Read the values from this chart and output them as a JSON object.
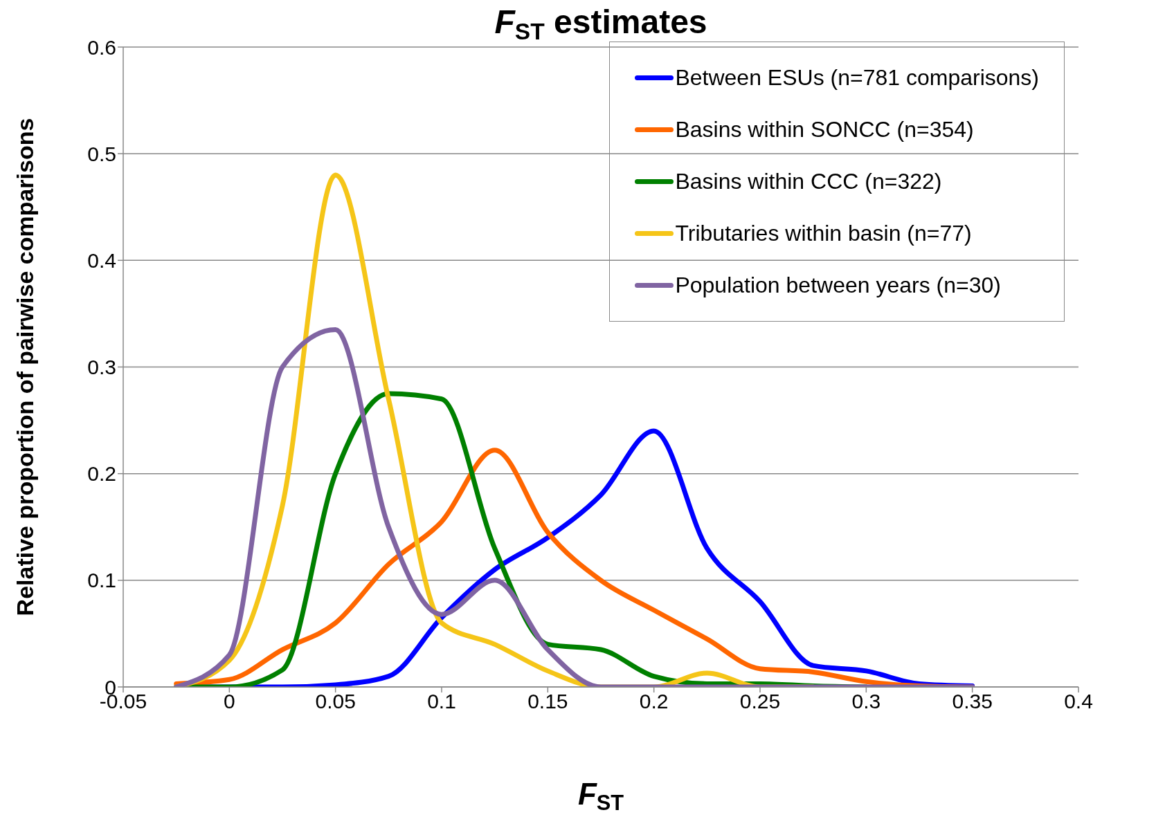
{
  "chart_data": {
    "type": "line",
    "title": "F$_{ST}$ estimates",
    "xlabel": "F$_{ST}$",
    "ylabel": "Relative proportion of pairwise comparisons",
    "x": [
      -0.025,
      0,
      0.025,
      0.05,
      0.075,
      0.1,
      0.125,
      0.15,
      0.175,
      0.2,
      0.225,
      0.25,
      0.275,
      0.3,
      0.325,
      0.35
    ],
    "series": [
      {
        "name": "Between ESUs (n=781 comparisons)",
        "color": "#0000ff",
        "values": [
          0,
          0,
          0,
          0.002,
          0.01,
          0.065,
          0.11,
          0.14,
          0.18,
          0.24,
          0.13,
          0.08,
          0.02,
          0.015,
          0.003,
          0.001
        ]
      },
      {
        "name": "Basins within SONCC (n=354)",
        "color": "#ff6600",
        "values": [
          0.003,
          0.007,
          0.035,
          0.06,
          0.115,
          0.155,
          0.222,
          0.145,
          0.1,
          0.072,
          0.045,
          0.017,
          0.014,
          0.005,
          0.001,
          0
        ]
      },
      {
        "name": "Basins within CCC (n=322)",
        "color": "#008000",
        "values": [
          0,
          0,
          0.016,
          0.2,
          0.275,
          0.27,
          0.13,
          0.04,
          0.035,
          0.01,
          0.003,
          0.003,
          0.001,
          0,
          null,
          null
        ]
      },
      {
        "name": "Tributaries within basin (n=77)",
        "color": "#f5c518",
        "values": [
          0,
          0.025,
          0.17,
          0.48,
          0.27,
          0.06,
          0.04,
          0.015,
          0,
          0,
          0.013,
          0,
          0,
          null,
          null,
          null
        ]
      },
      {
        "name": "Population between years (n=30)",
        "color": "#8064a2",
        "values": [
          0,
          0.03,
          0.3,
          0.335,
          0.15,
          0.068,
          0.1,
          0.035,
          0,
          0,
          0,
          0,
          0,
          0,
          0,
          0
        ]
      }
    ],
    "xlim": [
      -0.05,
      0.4
    ],
    "xticks": [
      -0.05,
      0,
      0.05,
      0.1,
      0.15,
      0.2,
      0.25,
      0.3,
      0.35,
      0.4
    ],
    "ylim": [
      0,
      0.6
    ],
    "yticks": [
      0,
      0.1,
      0.2,
      0.3,
      0.4,
      0.5,
      0.6
    ],
    "grid": "y",
    "legend": "top right",
    "marker": "none",
    "line_style": "solid"
  }
}
